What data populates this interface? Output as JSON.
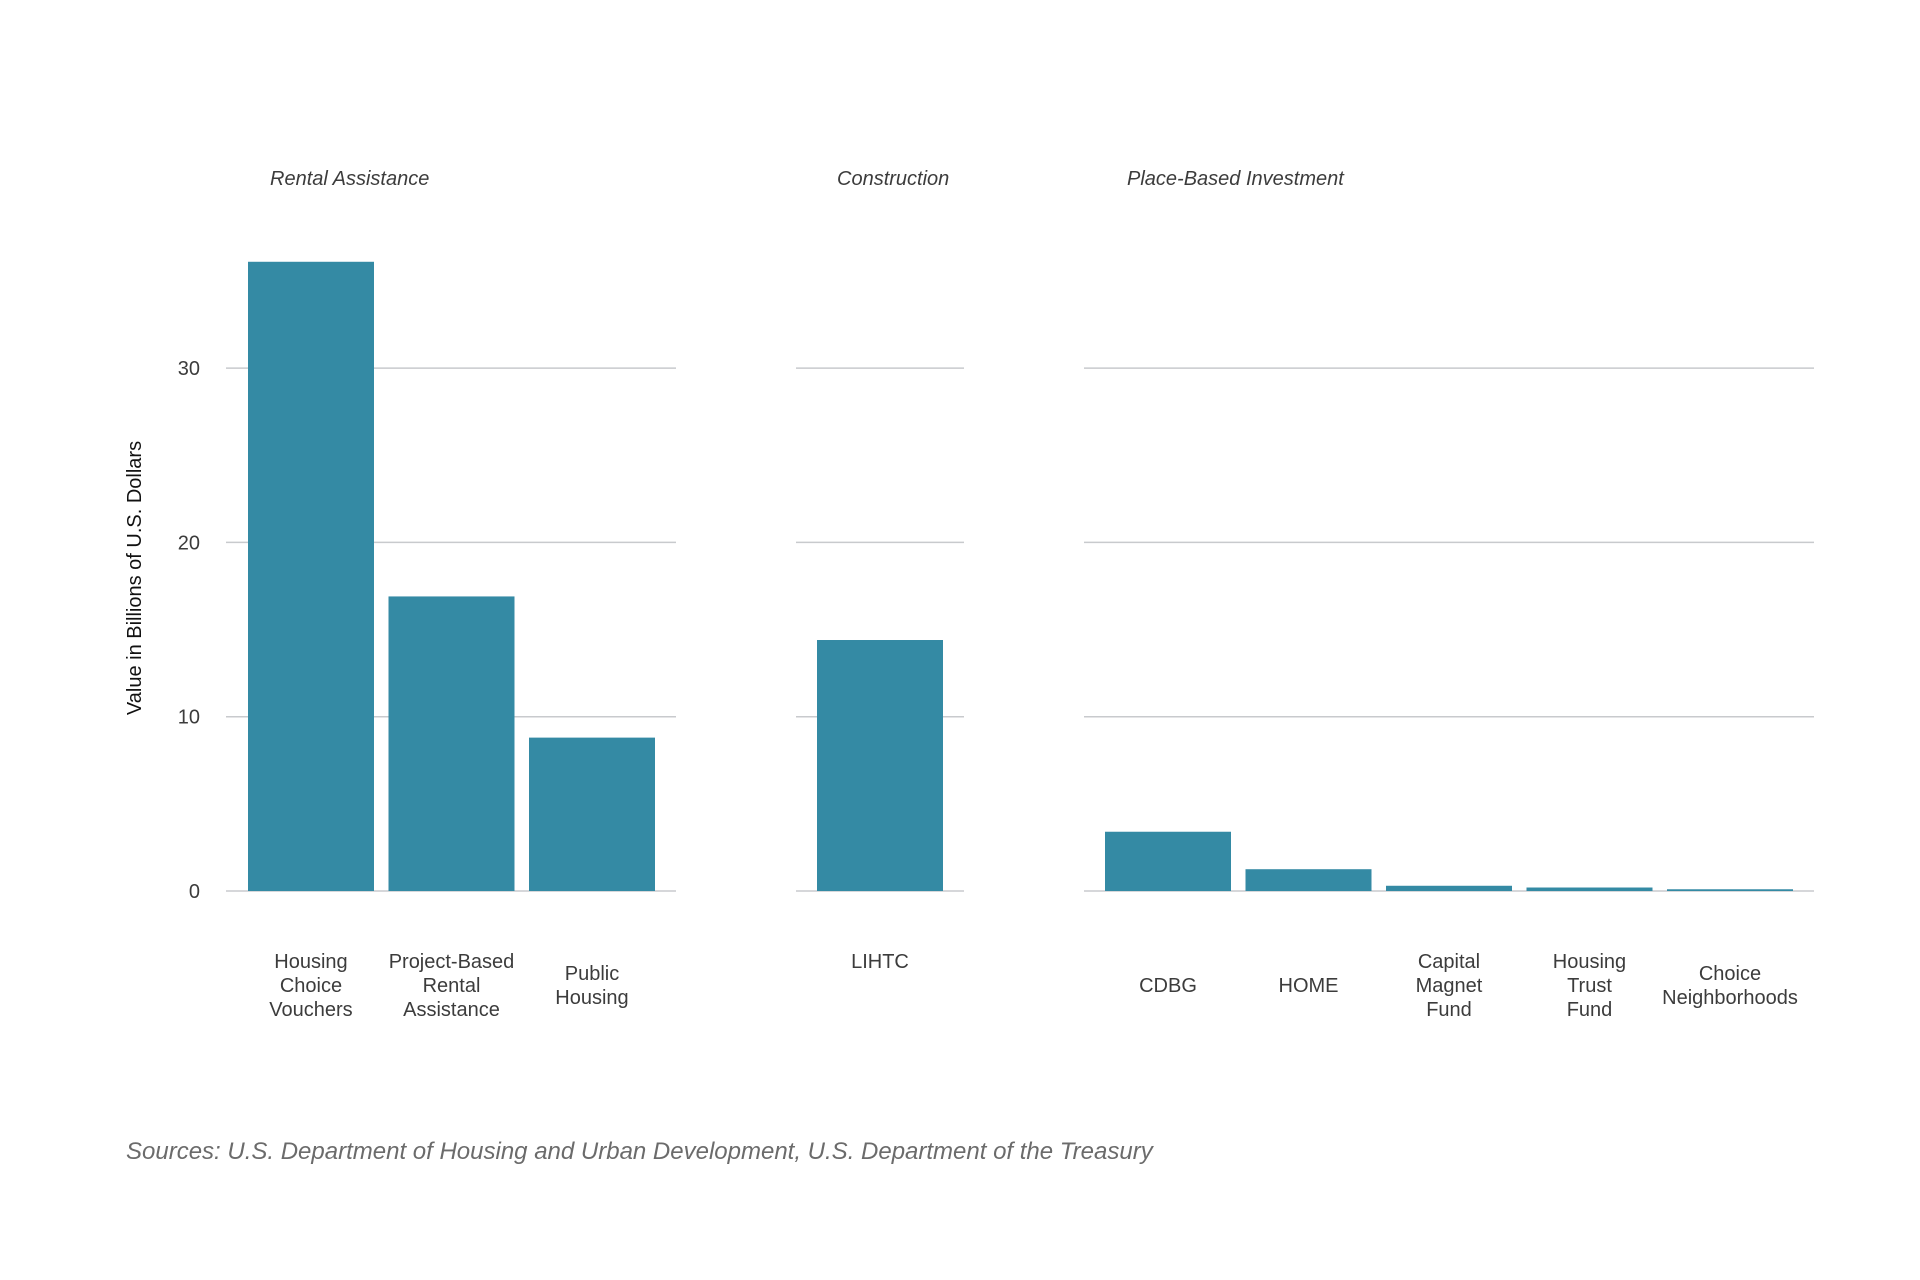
{
  "chart_data": {
    "type": "bar",
    "ylabel": "Value in Billions of U.S. Dollars",
    "ylim": [
      0,
      37
    ],
    "yticks": [
      "0",
      "10",
      "20",
      "30"
    ],
    "grid": true,
    "bar_color": "#348aa4",
    "grid_color": "#c8cacd",
    "panels": [
      {
        "title": "Rental Assistance",
        "categories": [
          [
            "Housing",
            "Choice",
            "Vouchers"
          ],
          [
            "Project-Based",
            "Rental",
            "Assistance"
          ],
          [
            "Public",
            "Housing"
          ]
        ],
        "values": [
          36.1,
          16.9,
          8.8
        ]
      },
      {
        "title": "Construction",
        "categories": [
          [
            "LIHTC"
          ]
        ],
        "values": [
          14.4
        ]
      },
      {
        "title": "Place-Based Investment",
        "categories": [
          [
            "CDBG"
          ],
          [
            "HOME"
          ],
          [
            "Capital",
            "Magnet",
            "Fund"
          ],
          [
            "Housing",
            "Trust",
            "Fund"
          ],
          [
            "Choice",
            "Neighborhoods"
          ]
        ],
        "values": [
          3.4,
          1.25,
          0.3,
          0.2,
          0.1
        ]
      }
    ]
  },
  "source_note": "Sources: U.S. Department of Housing and Urban Development, U.S. Department of the Treasury"
}
